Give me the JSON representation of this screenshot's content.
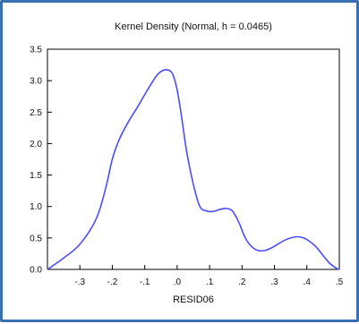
{
  "chart_data": {
    "type": "line",
    "title": "Kernel Density (Normal, h = 0.0465)",
    "xlabel": "RESID06",
    "ylabel": "",
    "xlim": [
      -0.4,
      0.5
    ],
    "ylim": [
      0.0,
      3.5
    ],
    "x_ticks": [
      -0.3,
      -0.2,
      -0.1,
      0.0,
      0.1,
      0.2,
      0.3,
      0.4,
      0.5
    ],
    "x_tick_labels": [
      "-.3",
      "-.2",
      "-.1",
      ".0",
      ".1",
      ".2",
      ".3",
      ".4",
      ".5"
    ],
    "y_ticks": [
      0.0,
      0.5,
      1.0,
      1.5,
      2.0,
      2.5,
      3.0,
      3.5
    ],
    "y_tick_labels": [
      "0.0",
      "0.5",
      "1.0",
      "1.5",
      "2.0",
      "2.5",
      "3.0",
      "3.5"
    ],
    "grid": false,
    "line_color": "#4c4cff",
    "series": [
      {
        "x": [
          -0.4,
          -0.35,
          -0.3,
          -0.25,
          -0.22,
          -0.2,
          -0.18,
          -0.15,
          -0.12,
          -0.1,
          -0.08,
          -0.06,
          -0.04,
          -0.02,
          -0.01,
          0.0,
          0.01,
          0.02,
          0.03,
          0.05,
          0.07,
          0.09,
          0.11,
          0.13,
          0.15,
          0.17,
          0.19,
          0.21,
          0.23,
          0.25,
          0.27,
          0.29,
          0.31,
          0.33,
          0.35,
          0.37,
          0.39,
          0.41,
          0.43,
          0.45,
          0.47,
          0.49,
          0.5
        ],
        "y": [
          0.0,
          0.18,
          0.4,
          0.8,
          1.3,
          1.75,
          2.05,
          2.35,
          2.6,
          2.78,
          2.95,
          3.1,
          3.17,
          3.15,
          3.05,
          2.85,
          2.55,
          2.2,
          1.85,
          1.35,
          1.0,
          0.93,
          0.92,
          0.95,
          0.97,
          0.93,
          0.75,
          0.5,
          0.36,
          0.3,
          0.3,
          0.34,
          0.4,
          0.46,
          0.5,
          0.52,
          0.5,
          0.44,
          0.35,
          0.22,
          0.1,
          0.02,
          0.0
        ]
      }
    ]
  }
}
